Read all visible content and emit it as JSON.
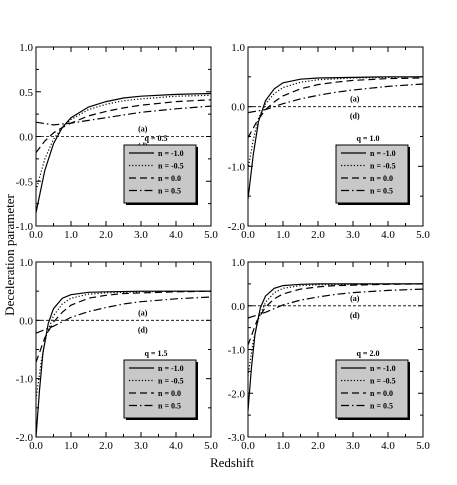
{
  "chart_data": {
    "type": "line",
    "xlabel": "Redshift",
    "ylabel": "Deceleration parameter",
    "panels": [
      {
        "id": "q05",
        "panel_label": "q = 0.5",
        "xlim": [
          0,
          5
        ],
        "ylim": [
          -1,
          1
        ],
        "xticks": [
          "0.0",
          "1.0",
          "2.0",
          "3.0",
          "4.0",
          "5.0"
        ],
        "yticks": [
          "-1.0",
          "-0.5",
          "0.0",
          "0.5",
          "1.0"
        ],
        "annotations": [
          "(a)",
          "(d)"
        ],
        "series": [
          {
            "name": "n = -1.0",
            "style": "solid",
            "x": [
              0,
              0.25,
              0.5,
              0.75,
              1,
              1.5,
              2,
              2.5,
              3,
              4,
              5
            ],
            "y": [
              -0.85,
              -0.38,
              -0.08,
              0.1,
              0.21,
              0.33,
              0.39,
              0.43,
              0.45,
              0.47,
              0.48
            ]
          },
          {
            "name": "n = -0.5",
            "style": "dotted",
            "x": [
              0,
              0.25,
              0.5,
              0.75,
              1,
              1.5,
              2,
              2.5,
              3,
              4,
              5
            ],
            "y": [
              -0.6,
              -0.25,
              -0.03,
              0.1,
              0.19,
              0.3,
              0.36,
              0.4,
              0.42,
              0.45,
              0.46
            ]
          },
          {
            "name": "n = 0.0",
            "style": "dashed",
            "x": [
              0,
              0.25,
              0.5,
              0.75,
              1,
              1.5,
              2,
              2.5,
              3,
              4,
              5
            ],
            "y": [
              -0.18,
              -0.05,
              0.04,
              0.1,
              0.15,
              0.23,
              0.28,
              0.32,
              0.35,
              0.39,
              0.41
            ]
          },
          {
            "name": "n = 0.5",
            "style": "dashdot",
            "x": [
              0,
              0.5,
              1,
              1.5,
              2,
              2.5,
              3,
              4,
              5
            ],
            "y": [
              0.16,
              0.13,
              0.15,
              0.18,
              0.21,
              0.24,
              0.27,
              0.31,
              0.34
            ]
          },
          {
            "name": "",
            "style": "finedash",
            "x": [
              0,
              5
            ],
            "y": [
              0,
              0
            ]
          }
        ]
      },
      {
        "id": "q10",
        "panel_label": "q = 1.0",
        "xlim": [
          0,
          5
        ],
        "ylim": [
          -2,
          1
        ],
        "xticks": [
          "0.0",
          "1.0",
          "2.0",
          "3.0",
          "4.0",
          "5.0"
        ],
        "yticks": [
          "-2.0",
          "-1.0",
          "0.0",
          "1.0"
        ],
        "annotations": [
          "(a)",
          "(d)"
        ],
        "series": [
          {
            "name": "n = -1.0",
            "style": "solid",
            "x": [
              0,
              0.15,
              0.3,
              0.5,
              0.75,
              1,
              1.5,
              2,
              3,
              4,
              5
            ],
            "y": [
              -1.55,
              -0.8,
              -0.25,
              0.1,
              0.3,
              0.4,
              0.46,
              0.48,
              0.49,
              0.5,
              0.5
            ]
          },
          {
            "name": "n = -0.5",
            "style": "dotted",
            "x": [
              0,
              0.15,
              0.3,
              0.5,
              0.75,
              1,
              1.5,
              2,
              3,
              4,
              5
            ],
            "y": [
              -1.05,
              -0.55,
              -0.2,
              0.05,
              0.22,
              0.32,
              0.41,
              0.45,
              0.48,
              0.49,
              0.5
            ]
          },
          {
            "name": "n = 0.0",
            "style": "dashed",
            "x": [
              0,
              0.25,
              0.5,
              0.75,
              1,
              1.5,
              2,
              2.5,
              3,
              4,
              5
            ],
            "y": [
              -0.52,
              -0.25,
              -0.05,
              0.08,
              0.18,
              0.3,
              0.37,
              0.41,
              0.44,
              0.47,
              0.48
            ]
          },
          {
            "name": "n = 0.5",
            "style": "dashdot",
            "x": [
              0,
              0.5,
              1,
              1.5,
              2,
              2.5,
              3,
              4,
              5
            ],
            "y": [
              -0.1,
              -0.05,
              0.05,
              0.13,
              0.19,
              0.24,
              0.28,
              0.34,
              0.38
            ]
          },
          {
            "name": "",
            "style": "finedash",
            "x": [
              0,
              5
            ],
            "y": [
              0,
              0
            ]
          }
        ]
      },
      {
        "id": "q15",
        "panel_label": "q = 1.5",
        "xlim": [
          0,
          5
        ],
        "ylim": [
          -2,
          1
        ],
        "xticks": [
          "0.0",
          "1.0",
          "2.0",
          "3.0",
          "4.0",
          "5.0"
        ],
        "yticks": [
          "-2.0",
          "-1.0",
          "0.0",
          "1.0"
        ],
        "annotations": [
          "(a)",
          "(d)"
        ],
        "series": [
          {
            "name": "n = -1.0",
            "style": "solid",
            "x": [
              0,
              0.1,
              0.2,
              0.35,
              0.5,
              0.75,
              1,
              1.5,
              2,
              3,
              5
            ],
            "y": [
              -2.0,
              -1.2,
              -0.55,
              -0.05,
              0.2,
              0.38,
              0.44,
              0.48,
              0.49,
              0.5,
              0.5
            ]
          },
          {
            "name": "n = -0.5",
            "style": "dotted",
            "x": [
              0,
              0.15,
              0.3,
              0.5,
              0.75,
              1,
              1.5,
              2,
              3,
              4,
              5
            ],
            "y": [
              -1.35,
              -0.7,
              -0.25,
              0.08,
              0.28,
              0.38,
              0.45,
              0.47,
              0.49,
              0.5,
              0.5
            ]
          },
          {
            "name": "n = 0.0",
            "style": "dashed",
            "x": [
              0,
              0.25,
              0.5,
              0.75,
              1,
              1.5,
              2,
              2.5,
              3,
              4,
              5
            ],
            "y": [
              -0.72,
              -0.3,
              -0.03,
              0.14,
              0.26,
              0.38,
              0.43,
              0.46,
              0.47,
              0.49,
              0.5
            ]
          },
          {
            "name": "n = 0.5",
            "style": "dashdot",
            "x": [
              0,
              0.5,
              1,
              1.5,
              2,
              2.5,
              3,
              4,
              5
            ],
            "y": [
              -0.22,
              -0.1,
              0.05,
              0.15,
              0.22,
              0.28,
              0.32,
              0.37,
              0.4
            ]
          },
          {
            "name": "",
            "style": "finedash",
            "x": [
              0,
              5
            ],
            "y": [
              0,
              0
            ]
          }
        ]
      },
      {
        "id": "q20",
        "panel_label": "q = 2.0",
        "xlim": [
          0,
          5
        ],
        "ylim": [
          -3,
          1
        ],
        "xticks": [
          "0.0",
          "1.0",
          "2.0",
          "3.0",
          "4.0",
          "5.0"
        ],
        "yticks": [
          "-3.0",
          "-2.0",
          "-1.0",
          "0.0",
          "1.0"
        ],
        "annotations": [
          "(a)",
          "(d)"
        ],
        "series": [
          {
            "name": "n = -1.0",
            "style": "solid",
            "x": [
              0,
              0.1,
              0.2,
              0.35,
              0.5,
              0.75,
              1,
              1.5,
              2,
              3,
              5
            ],
            "y": [
              -2.4,
              -1.4,
              -0.65,
              -0.05,
              0.22,
              0.4,
              0.46,
              0.49,
              0.5,
              0.5,
              0.5
            ]
          },
          {
            "name": "n = -0.5",
            "style": "dotted",
            "x": [
              0,
              0.15,
              0.3,
              0.5,
              0.75,
              1,
              1.5,
              2,
              3,
              4,
              5
            ],
            "y": [
              -1.6,
              -0.8,
              -0.3,
              0.08,
              0.3,
              0.4,
              0.46,
              0.48,
              0.49,
              0.5,
              0.5
            ]
          },
          {
            "name": "n = 0.0",
            "style": "dashed",
            "x": [
              0,
              0.25,
              0.5,
              0.75,
              1,
              1.5,
              2,
              2.5,
              3,
              4,
              5
            ],
            "y": [
              -0.9,
              -0.35,
              -0.03,
              0.16,
              0.27,
              0.38,
              0.43,
              0.46,
              0.47,
              0.49,
              0.5
            ]
          },
          {
            "name": "n = 0.5",
            "style": "dashdot",
            "x": [
              0,
              0.5,
              1,
              1.5,
              2,
              2.5,
              3,
              4,
              5
            ],
            "y": [
              -0.28,
              -0.15,
              0.02,
              0.13,
              0.2,
              0.26,
              0.3,
              0.35,
              0.38
            ]
          },
          {
            "name": "",
            "style": "finedash",
            "x": [
              0,
              5
            ],
            "y": [
              0,
              0
            ]
          }
        ]
      }
    ]
  }
}
